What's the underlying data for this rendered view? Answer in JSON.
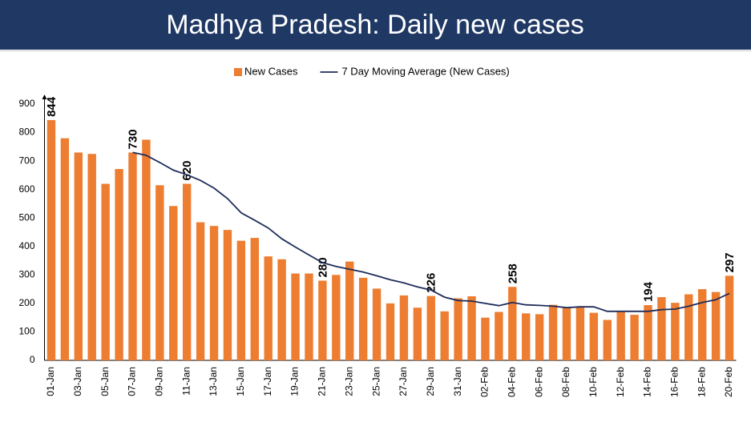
{
  "chart_data": {
    "type": "bar",
    "title": "Madhya Pradesh: Daily new cases",
    "categories": [
      "01-Jan",
      null,
      "03-Jan",
      null,
      "05-Jan",
      null,
      "07-Jan",
      null,
      "09-Jan",
      null,
      "11-Jan",
      null,
      "13-Jan",
      null,
      "15-Jan",
      null,
      "17-Jan",
      null,
      "19-Jan",
      null,
      "21-Jan",
      null,
      "23-Jan",
      null,
      "25-Jan",
      null,
      "27-Jan",
      null,
      "29-Jan",
      null,
      "31-Jan",
      null,
      "02-Feb",
      null,
      "04-Feb",
      null,
      "06-Feb",
      null,
      "08-Feb",
      null,
      "10-Feb",
      null,
      "12-Feb",
      null,
      "14-Feb",
      null,
      "16-Feb",
      null,
      "18-Feb",
      null,
      "20-Feb"
    ],
    "series": [
      {
        "name": "New Cases",
        "type": "bar",
        "color": "#ed7d31",
        "values": [
          844,
          780,
          730,
          725,
          620,
          672,
          730,
          775,
          615,
          542,
          620,
          485,
          472,
          458,
          420,
          430,
          365,
          355,
          305,
          305,
          280,
          300,
          347,
          290,
          252,
          200,
          228,
          185,
          226,
          172,
          218,
          225,
          150,
          170,
          258,
          165,
          162,
          195,
          185,
          190,
          167,
          142,
          170,
          160,
          194,
          222,
          202,
          232,
          250,
          240,
          297
        ],
        "value_labels": [
          "844",
          null,
          null,
          null,
          null,
          null,
          "730",
          null,
          null,
          null,
          "620",
          null,
          null,
          null,
          null,
          null,
          null,
          null,
          null,
          null,
          "280",
          null,
          null,
          null,
          null,
          null,
          null,
          null,
          "226",
          null,
          null,
          null,
          null,
          null,
          "258",
          null,
          null,
          null,
          null,
          null,
          null,
          null,
          null,
          null,
          "194",
          null,
          null,
          null,
          null,
          null,
          "297"
        ]
      },
      {
        "name": "7 Day Moving Average (New Cases)",
        "type": "line",
        "color": "#1f2d5a",
        "values": [
          null,
          null,
          null,
          null,
          null,
          null,
          730,
          720,
          695,
          668,
          652,
          632,
          605,
          568,
          518,
          492,
          465,
          427,
          398,
          370,
          343,
          330,
          320,
          310,
          297,
          283,
          272,
          258,
          247,
          222,
          210,
          208,
          200,
          192,
          203,
          195,
          193,
          190,
          185,
          188,
          188,
          172,
          172,
          172,
          172,
          178,
          180,
          190,
          203,
          213,
          235
        ]
      }
    ],
    "ylim": [
      0,
      900
    ],
    "yticks": [
      0,
      100,
      200,
      300,
      400,
      500,
      600,
      700,
      800,
      900
    ],
    "grid": false,
    "legend": "top"
  }
}
